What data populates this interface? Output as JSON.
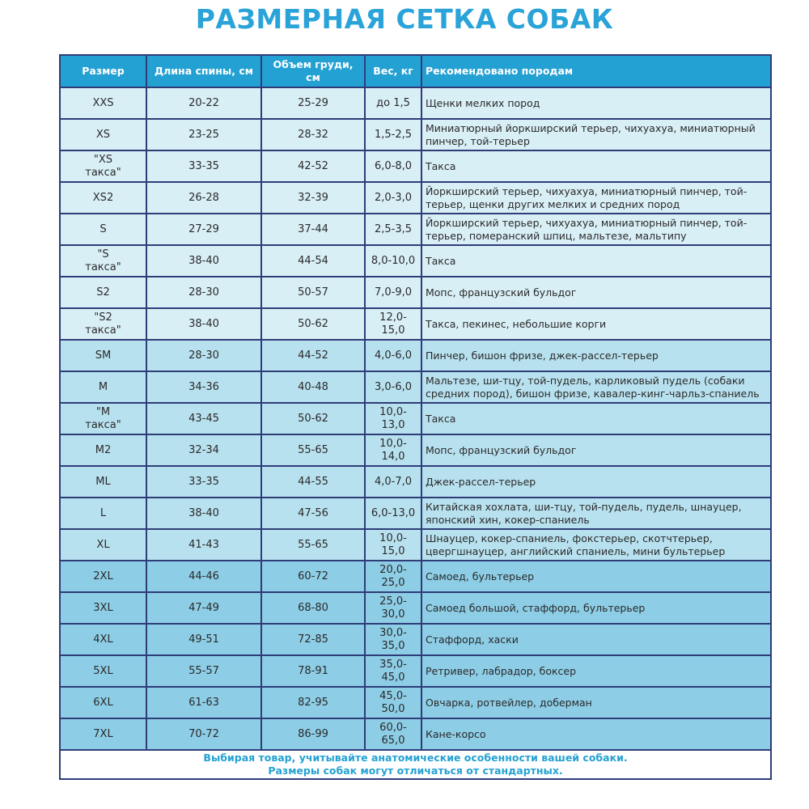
{
  "title": "РАЗМЕРНАЯ СЕТКА СОБАК",
  "colors": {
    "title": "#2aa3d8",
    "header_bg": "#24a1d3",
    "row_light": "#d9eff6",
    "row_mid": "#b8e1ef",
    "row_dark": "#8dcde6",
    "border": "#2e3d78"
  },
  "headers": [
    "Размер",
    "Длина спины, см",
    "Объем груди, см",
    "Вес, кг",
    "Рекомендовано породам"
  ],
  "rows": [
    {
      "size": "XXS",
      "back": "20-22",
      "chest": "25-29",
      "weight": "до 1,5",
      "breeds": "Щенки мелких пород",
      "shade": "l1"
    },
    {
      "size": "XS",
      "back": "23-25",
      "chest": "28-32",
      "weight": "1,5-2,5",
      "breeds": "Миниатюрный йоркширский терьер, чихуахуа, миниатюрный пинчер, той-терьер",
      "shade": "l1"
    },
    {
      "size": "\"XS\nтакса\"",
      "back": "33-35",
      "chest": "42-52",
      "weight": "6,0-8,0",
      "breeds": "Такса",
      "shade": "l1"
    },
    {
      "size": "XS2",
      "back": "26-28",
      "chest": "32-39",
      "weight": "2,0-3,0",
      "breeds": "Йоркширский терьер, чихуахуа, миниатюрный пинчер, той-терьер, щенки других мелких и средних пород",
      "shade": "l1"
    },
    {
      "size": "S",
      "back": "27-29",
      "chest": "37-44",
      "weight": "2,5-3,5",
      "breeds": "Йоркширский терьер, чихуахуа, миниатюрный пинчер, той-терьер, померанский шпиц, мальтезе, мальтипу",
      "shade": "l1"
    },
    {
      "size": "\"S\nтакса\"",
      "back": "38-40",
      "chest": "44-54",
      "weight": "8,0-10,0",
      "breeds": "Такса",
      "shade": "l1"
    },
    {
      "size": "S2",
      "back": "28-30",
      "chest": "50-57",
      "weight": "7,0-9,0",
      "breeds": "Мопс, французский бульдог",
      "shade": "l1"
    },
    {
      "size": "\"S2\nтакса\"",
      "back": "38-40",
      "chest": "50-62",
      "weight": "12,0-15,0",
      "breeds": "Такса, пекинес, небольшие корги",
      "shade": "l1"
    },
    {
      "size": "SM",
      "back": "28-30",
      "chest": "44-52",
      "weight": "4,0-6,0",
      "breeds": "Пинчер, бишон фризе, джек-рассел-терьер",
      "shade": "l2"
    },
    {
      "size": "M",
      "back": "34-36",
      "chest": "40-48",
      "weight": "3,0-6,0",
      "breeds": "Мальтезе, ши-тцу, той-пудель, карликовый пудель (собаки средних пород), бишон фризе, кавалер-кинг-чарльз-спаниель",
      "shade": "l2"
    },
    {
      "size": "\"M\nтакса\"",
      "back": "43-45",
      "chest": "50-62",
      "weight": "10,0-13,0",
      "breeds": "Такса",
      "shade": "l2"
    },
    {
      "size": "M2",
      "back": "32-34",
      "chest": "55-65",
      "weight": "10,0-14,0",
      "breeds": "Мопс, французский бульдог",
      "shade": "l2"
    },
    {
      "size": "ML",
      "back": "33-35",
      "chest": "44-55",
      "weight": "4,0-7,0",
      "breeds": "Джек-рассел-терьер",
      "shade": "l2"
    },
    {
      "size": "L",
      "back": "38-40",
      "chest": "47-56",
      "weight": "6,0-13,0",
      "breeds": "Китайская хохлата, ши-тцу, той-пудель, пудель, шнауцер, японский хин, кокер-спаниель",
      "shade": "l2"
    },
    {
      "size": "XL",
      "back": "41-43",
      "chest": "55-65",
      "weight": "10,0-15,0",
      "breeds": "Шнауцер, кокер-спаниель, фокстерьер, скотчтерьер, цвергшнауцер, английский спаниель, мини бультерьер",
      "shade": "l2"
    },
    {
      "size": "2XL",
      "back": "44-46",
      "chest": "60-72",
      "weight": "20,0-25,0",
      "breeds": "Самоед, бультерьер",
      "shade": "l3"
    },
    {
      "size": "3XL",
      "back": "47-49",
      "chest": "68-80",
      "weight": "25,0-30,0",
      "breeds": "Самоед большой, стаффорд, бультерьер",
      "shade": "l3"
    },
    {
      "size": "4XL",
      "back": "49-51",
      "chest": "72-85",
      "weight": "30,0-35,0",
      "breeds": "Стаффорд, хаски",
      "shade": "l3"
    },
    {
      "size": "5XL",
      "back": "55-57",
      "chest": "78-91",
      "weight": "35,0-45,0",
      "breeds": "Ретривер, лабрадор, боксер",
      "shade": "l3"
    },
    {
      "size": "6XL",
      "back": "61-63",
      "chest": "82-95",
      "weight": "45,0-50,0",
      "breeds": "Овчарка, ротвейлер, доберман",
      "shade": "l3"
    },
    {
      "size": "7XL",
      "back": "70-72",
      "chest": "86-99",
      "weight": "60,0-65,0",
      "breeds": "Кане-корсо",
      "shade": "l3"
    }
  ],
  "footer": [
    "Выбирая товар, учитывайте анатомические особенности вашей собаки.",
    "Размеры собак могут отличаться от стандартных."
  ]
}
